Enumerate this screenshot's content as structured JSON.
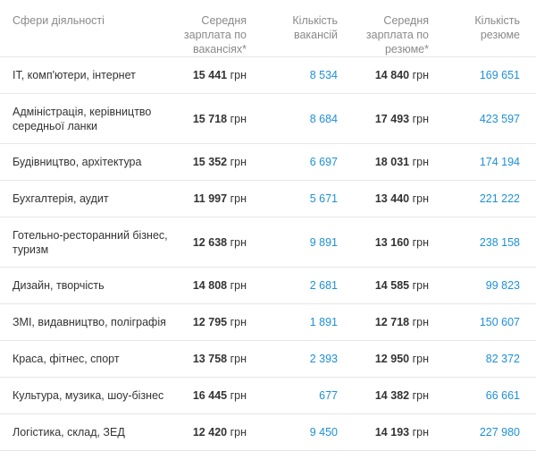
{
  "table": {
    "headers": {
      "sector": "Сфери діяльності",
      "salary_vacancies": "Середня зарплата по вакансіях*",
      "count_vacancies": "Кількість вакансій",
      "salary_resumes": "Середня зарплата по резюме*",
      "count_resumes": "Кількість резюме"
    },
    "currency": "грн",
    "rows": [
      {
        "sector": "ІТ, комп'ютери, інтернет",
        "salary_vacancies": "15 441",
        "count_vacancies": "8 534",
        "salary_resumes": "14 840",
        "count_resumes": "169 651"
      },
      {
        "sector": "Адміністрація, керівництво середньої ланки",
        "salary_vacancies": "15 718",
        "count_vacancies": "8 684",
        "salary_resumes": "17 493",
        "count_resumes": "423 597"
      },
      {
        "sector": "Будівництво, архітектура",
        "salary_vacancies": "15 352",
        "count_vacancies": "6 697",
        "salary_resumes": "18 031",
        "count_resumes": "174 194"
      },
      {
        "sector": "Бухгалтерія, аудит",
        "salary_vacancies": "11 997",
        "count_vacancies": "5 671",
        "salary_resumes": "13 440",
        "count_resumes": "221 222"
      },
      {
        "sector": "Готельно-ресторанний бізнес, туризм",
        "salary_vacancies": "12 638",
        "count_vacancies": "9 891",
        "salary_resumes": "13 160",
        "count_resumes": "238 158"
      },
      {
        "sector": "Дизайн, творчість",
        "salary_vacancies": "14 808",
        "count_vacancies": "2 681",
        "salary_resumes": "14 585",
        "count_resumes": "99 823"
      },
      {
        "sector": "ЗМІ, видавництво, поліграфія",
        "salary_vacancies": "12 795",
        "count_vacancies": "1 891",
        "salary_resumes": "12 718",
        "count_resumes": "150 607"
      },
      {
        "sector": "Краса, фітнес, спорт",
        "salary_vacancies": "13 758",
        "count_vacancies": "2 393",
        "salary_resumes": "12 950",
        "count_resumes": "82 372"
      },
      {
        "sector": "Культура, музика, шоу-бізнес",
        "salary_vacancies": "16 445",
        "count_vacancies": "677",
        "salary_resumes": "14 382",
        "count_resumes": "66 661"
      },
      {
        "sector": "Логістика, склад, ЗЕД",
        "salary_vacancies": "12 420",
        "count_vacancies": "9 450",
        "salary_resumes": "14 193",
        "count_resumes": "227 980"
      }
    ]
  },
  "colors": {
    "link": "#1e90d9",
    "header_text": "#8a8a8a",
    "body_text": "#333333",
    "divider": "#e6e6e6"
  }
}
